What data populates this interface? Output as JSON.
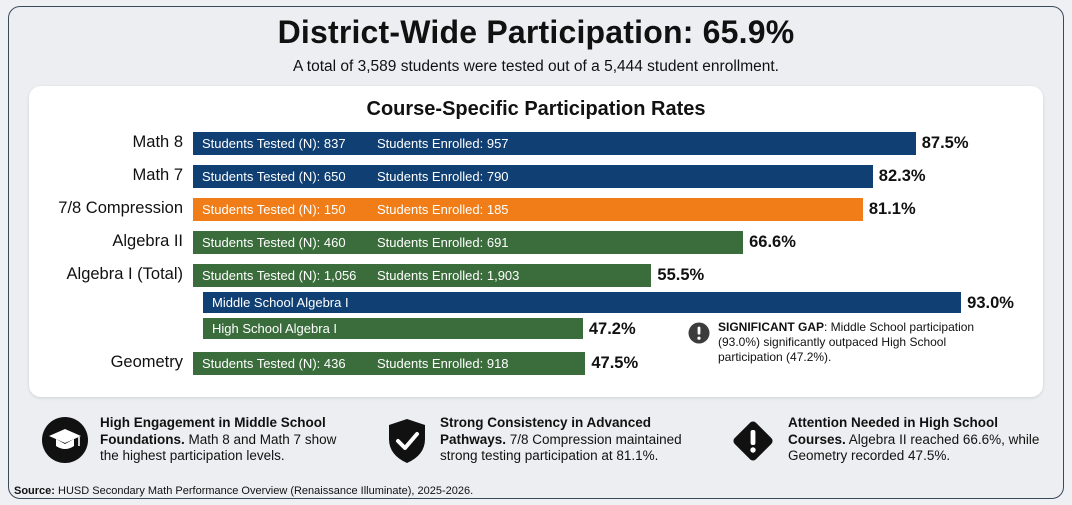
{
  "header": {
    "title": "District-Wide Participation: 65.9%",
    "subtitle": "A total of 3,589 students were tested out of a 5,444 student enrollment."
  },
  "colors": {
    "navy": "#0f3f73",
    "orange": "#f07d18",
    "green": "#3a6d3b"
  },
  "chart_data": {
    "type": "bar",
    "orientation": "horizontal",
    "title": "Course-Specific Participation Rates",
    "xlim": [
      0,
      100
    ],
    "grid": false,
    "rows": [
      {
        "category": "Math 8",
        "value": 87.5,
        "label": "87.5%",
        "tested": "Students Tested (N): 837",
        "enrolled": "Students Enrolled: 957",
        "color": "#0f3f73"
      },
      {
        "category": "Math 7",
        "value": 82.3,
        "label": "82.3%",
        "tested": "Students Tested (N): 650",
        "enrolled": "Students Enrolled: 790",
        "color": "#0f3f73"
      },
      {
        "category": "7/8 Compression",
        "value": 81.1,
        "label": "81.1%",
        "tested": "Students Tested (N): 150",
        "enrolled": "Students Enrolled: 185",
        "color": "#f07d18"
      },
      {
        "category": "Algebra II",
        "value": 66.6,
        "label": "66.6%",
        "tested": "Students Tested (N): 460",
        "enrolled": "Students Enrolled: 691",
        "color": "#3a6d3b"
      },
      {
        "category": "Algebra I (Total)",
        "value": 55.5,
        "label": "55.5%",
        "tested": "Students Tested (N): 1,056",
        "enrolled": "Students Enrolled: 1,903",
        "color": "#3a6d3b"
      },
      {
        "category": "",
        "sublabel": "Middle School Algebra I",
        "value": 93.0,
        "label": "93.0%",
        "color": "#0f3f73",
        "indent": true
      },
      {
        "category": "",
        "sublabel": "High School Algebra I",
        "value": 47.2,
        "label": "47.2%",
        "color": "#3a6d3b",
        "indent": true
      },
      {
        "category": "Geometry",
        "value": 47.5,
        "label": "47.5%",
        "tested": "Students Tested (N): 436",
        "enrolled": "Students Enrolled: 918",
        "color": "#3a6d3b"
      }
    ],
    "annotation": {
      "bold": "SIGNIFICANT GAP",
      "text": ": Middle School participation (93.0%) significantly outpaced High School participation (47.2%)."
    }
  },
  "insights": [
    {
      "icon": "graduation-cap-icon",
      "bold": "High Engagement in Middle School Foundations.",
      "text": " Math 8 and Math 7 show the highest participation levels."
    },
    {
      "icon": "shield-check-icon",
      "bold": "Strong Consistency in Advanced Pathways.",
      "text": " 7/8 Compression maintained strong testing participation at 81.1%."
    },
    {
      "icon": "warning-diamond-icon",
      "bold": "Attention Needed in High School Courses.",
      "text": " Algebra II reached 66.6%, while Geometry recorded 47.5%."
    }
  ],
  "source": {
    "bold": "Source:",
    "text": " HUSD Secondary Math Performance Overview (Renaissance Illuminate), 2025-2026."
  }
}
